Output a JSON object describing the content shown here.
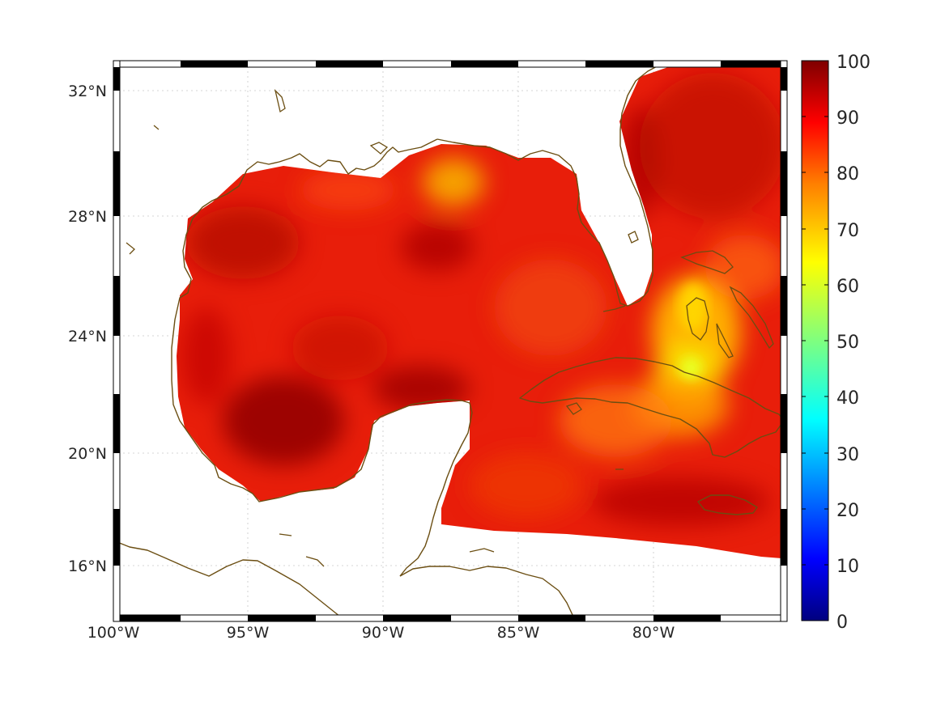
{
  "map": {
    "lon_labels": [
      "100°W",
      "95°W",
      "90°W",
      "85°W",
      "80°W"
    ],
    "lat_labels": [
      "32°N",
      "28°N",
      "24°N",
      "20°N",
      "16°N"
    ],
    "lon_values": [
      -100,
      -95,
      -90,
      -85,
      -80
    ],
    "lat_values": [
      32,
      28,
      24,
      20,
      16
    ],
    "lon_range": [
      -100,
      -75
    ],
    "lat_range": [
      14.2,
      33
    ],
    "projection": "Mercator",
    "frame": "alternating black-white border",
    "grid": true,
    "coastline_color": "#6b4e12"
  },
  "colorbar": {
    "tick_labels": [
      "0",
      "10",
      "20",
      "30",
      "40",
      "50",
      "60",
      "70",
      "80",
      "90",
      "100"
    ],
    "range": [
      0,
      100
    ],
    "colormap": "jet",
    "colors": [
      "#00007f",
      "#0000ff",
      "#007fff",
      "#00ffff",
      "#7fff7f",
      "#ffff00",
      "#ff7f00",
      "#ff0000",
      "#7f0000"
    ]
  }
}
